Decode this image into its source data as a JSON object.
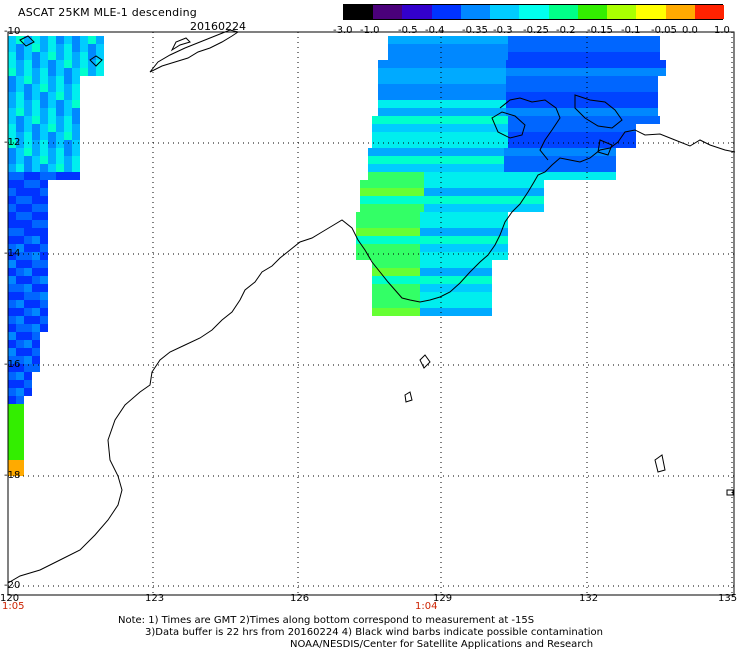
{
  "title": "ASCAT 25KM MLE-1 descending",
  "date": "20160224",
  "colorbar": {
    "labels": [
      "-3.0",
      "-1.0",
      "-0.5",
      "-0.4",
      "-0.35",
      "-0.3",
      "-0.25",
      "-0.2",
      "-0.15",
      "-0.1",
      "-0.05",
      "0.0",
      "1.0"
    ],
    "colors": [
      "#000000",
      "#4a007a",
      "#3300cc",
      "#0033ff",
      "#0088ff",
      "#00ccff",
      "#00ffee",
      "#00ff88",
      "#33ee00",
      "#aaff00",
      "#ffff00",
      "#ffaa00",
      "#ff2200"
    ]
  },
  "lat_labels": [
    "-10",
    "-12",
    "-14",
    "-16",
    "-18",
    "-20"
  ],
  "lon_labels": [
    "120",
    "123",
    "126",
    "129",
    "132",
    "135"
  ],
  "time_labels": [
    "1:05",
    "1:04"
  ],
  "notes": [
    "Note: 1) Times are GMT 2)Times along bottom correspond to measurement at -15S",
    "3)Data buffer is 22 hrs from 20160224 4) Black wind barbs indicate possible contamination",
    "NOAA/NESDIS/Center for Satellite Applications and Research"
  ],
  "colors": {
    "coast": "#000000",
    "grid": "#000000"
  }
}
